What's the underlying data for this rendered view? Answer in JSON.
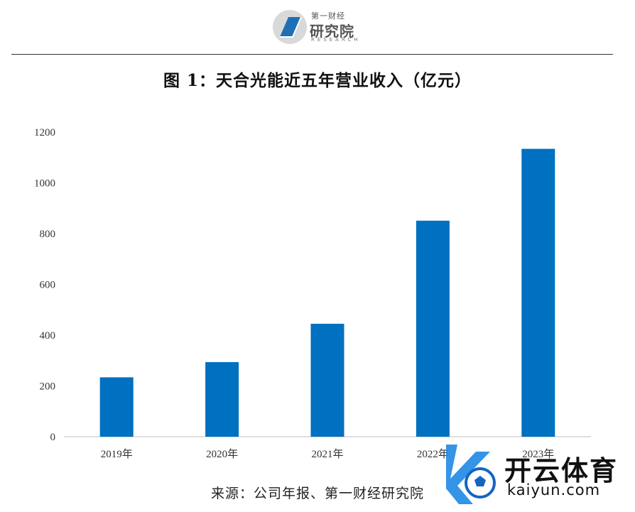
{
  "header": {
    "logo_small": "第一财经",
    "logo_big": "研究院",
    "logo_en": "RESEARCH"
  },
  "chart_data": {
    "type": "bar",
    "title": "图 1：天合光能近五年营业收入（亿元）",
    "categories": [
      "2019年",
      "2020年",
      "2021年",
      "2022年",
      "2023年"
    ],
    "values": [
      234,
      294,
      445,
      851,
      1134
    ],
    "ylim": [
      0,
      1200
    ],
    "yticks": [
      0,
      200,
      400,
      600,
      800,
      1000,
      1200
    ],
    "grid": false,
    "legend": "none",
    "bar_color": "#0070c0"
  },
  "source": "来源：公司年报、第一财经研究院",
  "watermark": {
    "cn": "开云体育",
    "en": "kaiyun.com"
  }
}
